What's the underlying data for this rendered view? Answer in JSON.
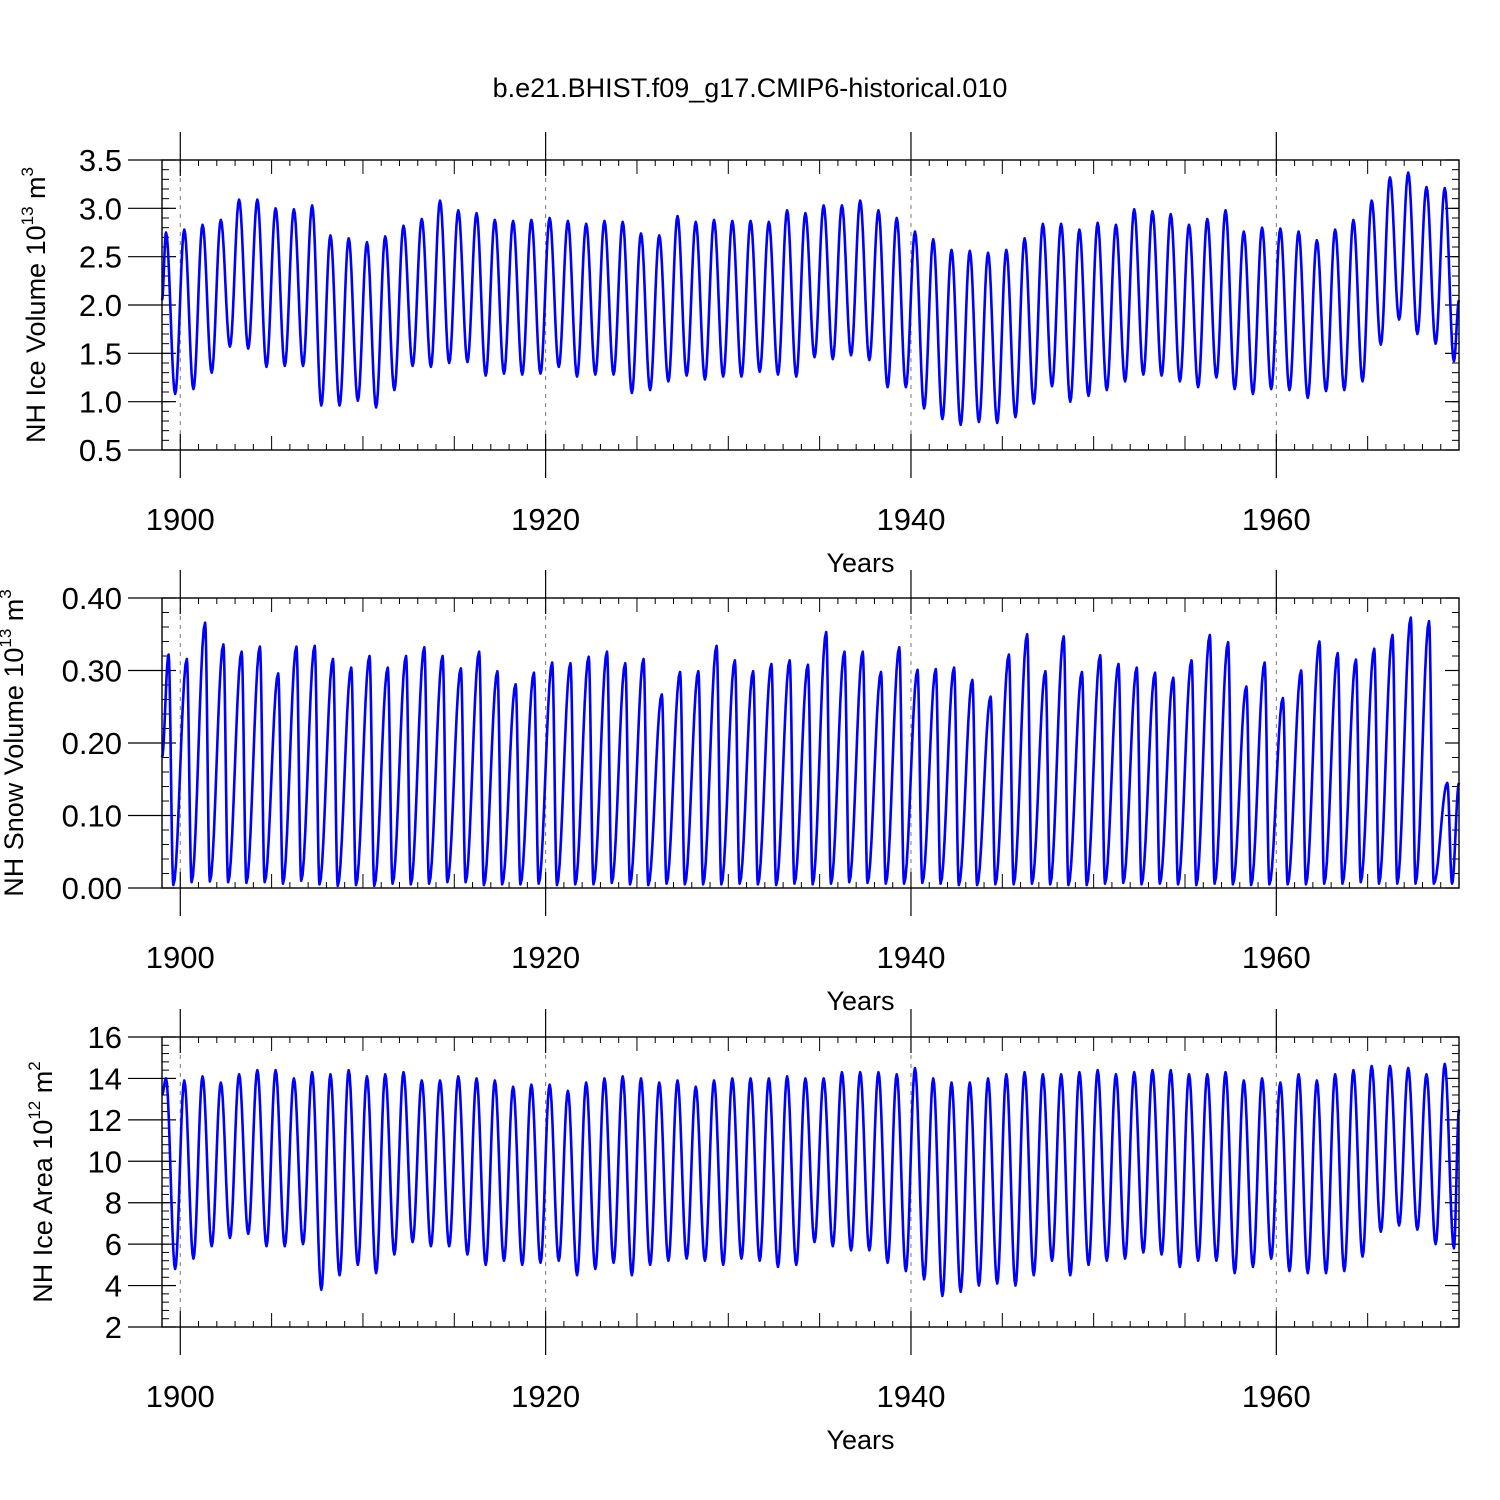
{
  "title": "b.e21.BHIST.f09_g17.CMIP6-historical.010",
  "chart_data": [
    {
      "type": "line",
      "name": "ice-volume",
      "ylabel": "NH Ice Volume 10",
      "ylabel_exp": "13",
      "ylabel_unit": " m",
      "ylabel_unit_exp": "3",
      "xlabel": "Years",
      "xlim": [
        1899.0,
        1970.0
      ],
      "ylim": [
        0.5,
        3.5
      ],
      "xticks": [
        1900,
        1920,
        1940,
        1960
      ],
      "xtick_labels": [
        "1900",
        "1920",
        "1940",
        "1960"
      ],
      "yticks": [
        0.5,
        1.0,
        1.5,
        2.0,
        2.5,
        3.0,
        3.5
      ],
      "ytick_labels": [
        "0.5",
        "1.0",
        "1.5",
        "2.0",
        "2.5",
        "3.0",
        "3.5"
      ],
      "series_color": "#0000ff",
      "start": 1899.0,
      "start_value": 2.05,
      "end_value": 2.05,
      "min_month_offset": 0.72,
      "max_month_offset": 0.22,
      "annual_max": [
        2.75,
        2.78,
        2.83,
        2.88,
        3.09,
        3.09,
        3.0,
        2.99,
        3.03,
        2.72,
        2.69,
        2.65,
        2.71,
        2.82,
        2.89,
        3.08,
        2.98,
        2.95,
        2.88,
        2.87,
        2.88,
        2.9,
        2.87,
        2.84,
        2.87,
        2.86,
        2.74,
        2.72,
        2.92,
        2.86,
        2.88,
        2.87,
        2.87,
        2.86,
        2.98,
        2.95,
        3.03,
        3.03,
        3.08,
        2.98,
        2.9,
        2.76,
        2.68,
        2.57,
        2.56,
        2.54,
        2.57,
        2.69,
        2.84,
        2.84,
        2.78,
        2.85,
        2.83,
        2.99,
        2.97,
        2.94,
        2.83,
        2.89,
        2.98,
        2.76,
        2.8,
        2.79,
        2.76,
        2.67,
        2.78,
        2.88,
        3.08,
        3.32,
        3.37,
        3.22,
        3.21
      ],
      "annual_min": [
        1.08,
        1.13,
        1.3,
        1.57,
        1.55,
        1.36,
        1.37,
        1.37,
        0.96,
        0.96,
        1.01,
        0.94,
        1.12,
        1.37,
        1.36,
        1.4,
        1.41,
        1.27,
        1.29,
        1.28,
        1.29,
        1.36,
        1.26,
        1.28,
        1.28,
        1.09,
        1.12,
        1.21,
        1.27,
        1.23,
        1.26,
        1.26,
        1.31,
        1.28,
        1.26,
        1.46,
        1.44,
        1.48,
        1.43,
        1.15,
        1.15,
        0.93,
        0.82,
        0.76,
        0.79,
        0.78,
        0.84,
        0.98,
        1.16,
        1.0,
        1.06,
        1.12,
        1.21,
        1.28,
        1.27,
        1.21,
        1.15,
        1.25,
        1.13,
        1.08,
        1.13,
        1.12,
        1.04,
        1.11,
        1.12,
        1.21,
        1.59,
        1.85,
        1.7,
        1.6,
        1.42
      ]
    },
    {
      "type": "line",
      "name": "snow-volume",
      "ylabel": "NH Snow Volume 10",
      "ylabel_exp": "13",
      "ylabel_unit": " m",
      "ylabel_unit_exp": "3",
      "xlabel": "Years",
      "xlim": [
        1899.0,
        1970.0
      ],
      "ylim": [
        0.0,
        0.4
      ],
      "xticks": [
        1900,
        1920,
        1940,
        1960
      ],
      "xtick_labels": [
        "1900",
        "1920",
        "1940",
        "1960"
      ],
      "yticks": [
        0.0,
        0.1,
        0.2,
        0.3,
        0.4
      ],
      "ytick_labels": [
        "0.00",
        "0.10",
        "0.20",
        "0.30",
        "0.40"
      ],
      "series_color": "#0000ff",
      "start": 1899.0,
      "start_value": 0.18,
      "end_value": 0.145,
      "min_month_offset": 0.62,
      "max_month_offset": 0.36,
      "annual_max": [
        0.322,
        0.316,
        0.366,
        0.336,
        0.326,
        0.333,
        0.296,
        0.333,
        0.334,
        0.316,
        0.304,
        0.32,
        0.304,
        0.32,
        0.332,
        0.32,
        0.303,
        0.326,
        0.299,
        0.281,
        0.297,
        0.311,
        0.31,
        0.319,
        0.326,
        0.31,
        0.316,
        0.267,
        0.298,
        0.299,
        0.334,
        0.314,
        0.299,
        0.309,
        0.314,
        0.308,
        0.353,
        0.326,
        0.326,
        0.298,
        0.332,
        0.301,
        0.302,
        0.304,
        0.287,
        0.264,
        0.322,
        0.35,
        0.299,
        0.347,
        0.298,
        0.321,
        0.309,
        0.304,
        0.297,
        0.29,
        0.314,
        0.349,
        0.339,
        0.278,
        0.311,
        0.262,
        0.3,
        0.34,
        0.324,
        0.315,
        0.33,
        0.349,
        0.373,
        0.368,
        0.145
      ],
      "annual_min": [
        0.004,
        0.008,
        0.009,
        0.008,
        0.007,
        0.008,
        0.006,
        0.01,
        0.005,
        0.003,
        0.004,
        0.003,
        0.006,
        0.005,
        0.006,
        0.008,
        0.008,
        0.004,
        0.005,
        0.005,
        0.006,
        0.004,
        0.005,
        0.005,
        0.007,
        0.005,
        0.004,
        0.006,
        0.005,
        0.005,
        0.005,
        0.006,
        0.005,
        0.004,
        0.006,
        0.005,
        0.006,
        0.008,
        0.007,
        0.006,
        0.006,
        0.007,
        0.006,
        0.004,
        0.004,
        0.005,
        0.005,
        0.006,
        0.005,
        0.004,
        0.004,
        0.006,
        0.007,
        0.005,
        0.006,
        0.005,
        0.004,
        0.006,
        0.005,
        0.004,
        0.005,
        0.005,
        0.005,
        0.006,
        0.006,
        0.008,
        0.006,
        0.006,
        0.006,
        0.006,
        0.006
      ]
    },
    {
      "type": "line",
      "name": "ice-area",
      "ylabel": "NH Ice Area 10",
      "ylabel_exp": "12",
      "ylabel_unit": " m",
      "ylabel_unit_exp": "2",
      "xlabel": "Years",
      "xlim": [
        1899.0,
        1970.0
      ],
      "ylim": [
        2,
        16
      ],
      "xticks": [
        1900,
        1920,
        1940,
        1960
      ],
      "xtick_labels": [
        "1900",
        "1920",
        "1940",
        "1960"
      ],
      "yticks": [
        2,
        4,
        6,
        8,
        10,
        12,
        14,
        16
      ],
      "ytick_labels": [
        "2",
        "4",
        "6",
        "8",
        "10",
        "12",
        "14",
        "16"
      ],
      "series_color": "#0000ff",
      "start": 1899.0,
      "start_value": 13.2,
      "end_value": 12.5,
      "min_month_offset": 0.72,
      "max_month_offset": 0.22,
      "annual_max": [
        14.0,
        13.9,
        14.1,
        13.8,
        14.2,
        14.4,
        14.4,
        14.0,
        14.3,
        14.2,
        14.4,
        14.1,
        14.2,
        14.3,
        13.9,
        13.9,
        14.1,
        14.0,
        13.9,
        13.6,
        13.7,
        13.7,
        13.4,
        13.8,
        14.0,
        14.1,
        14.0,
        13.8,
        13.9,
        13.6,
        13.9,
        14.0,
        14.0,
        14.0,
        14.1,
        14.0,
        14.0,
        14.3,
        14.3,
        14.3,
        14.2,
        14.5,
        14.0,
        13.8,
        13.8,
        14.0,
        14.2,
        14.3,
        14.2,
        14.2,
        14.3,
        14.4,
        14.2,
        14.3,
        14.4,
        14.4,
        14.2,
        14.2,
        14.3,
        13.9,
        14.0,
        13.8,
        14.2,
        13.9,
        14.2,
        14.4,
        14.6,
        14.6,
        14.5,
        14.2,
        14.7
      ],
      "annual_min": [
        4.8,
        5.3,
        5.9,
        6.3,
        6.5,
        5.9,
        5.9,
        6.0,
        3.8,
        4.5,
        5.0,
        4.6,
        5.5,
        6.1,
        5.9,
        5.9,
        5.5,
        5.0,
        5.2,
        5.0,
        5.1,
        5.2,
        4.5,
        4.8,
        5.1,
        4.5,
        5.0,
        5.2,
        5.3,
        5.2,
        5.0,
        5.3,
        5.2,
        4.9,
        5.0,
        6.1,
        5.9,
        5.7,
        5.7,
        5.1,
        4.7,
        4.3,
        3.5,
        3.7,
        4.0,
        4.1,
        4.0,
        4.5,
        5.2,
        4.5,
        5.0,
        5.2,
        5.3,
        5.6,
        5.5,
        4.9,
        5.2,
        5.2,
        4.6,
        4.9,
        5.3,
        4.7,
        4.6,
        4.6,
        4.7,
        5.4,
        6.6,
        6.9,
        6.7,
        6.0,
        5.8
      ]
    }
  ]
}
